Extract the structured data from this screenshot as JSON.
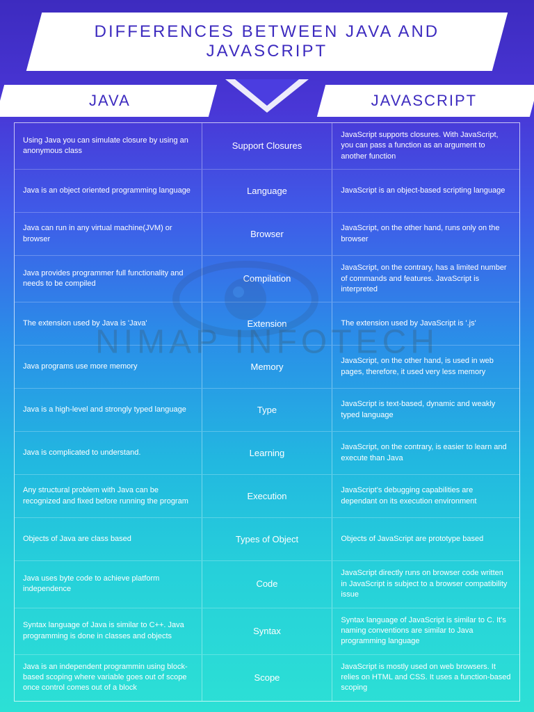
{
  "title": "DIFFERENCES BETWEEN JAVA AND JAVASCRIPT",
  "header_left": "JAVA",
  "header_right": "JAVASCRIPT",
  "watermark": "NIMAP INFOTECH",
  "rows": [
    {
      "topic": "Support Closures",
      "java": "Using Java you can simulate closure by using an anonymous class",
      "js": "JavaScript supports closures. With JavaScript, you can pass a function as an argument to another function"
    },
    {
      "topic": "Language",
      "java": "Java is an object oriented programming language",
      "js": "JavaScript is an object-based scripting language"
    },
    {
      "topic": "Browser",
      "java": "Java can run in any virtual machine(JVM) or browser",
      "js": "JavaScript, on the other hand, runs only on the browser"
    },
    {
      "topic": "Compilation",
      "java": "Java provides programmer full functionality and needs to be compiled",
      "js": "JavaScript, on the contrary, has a limited number of commands and features. JavaScript is interpreted"
    },
    {
      "topic": "Extension",
      "java": "The extension used by Java is 'Java'",
      "js": "The extension used by JavaScript is '.js'"
    },
    {
      "topic": "Memory",
      "java": "Java programs use more memory",
      "js": "JavaScript, on the other hand, is used in web pages, therefore, it used very less memory"
    },
    {
      "topic": "Type",
      "java": "Java is a high-level and strongly typed language",
      "js": "JavaScript is text-based, dynamic and weakly typed language"
    },
    {
      "topic": "Learning",
      "java": "Java is complicated to understand.",
      "js": "JavaScript, on the contrary, is easier to learn and execute than Java"
    },
    {
      "topic": "Execution",
      "java": "Any structural problem with Java can be recognized and fixed before running the program",
      "js": "JavaScript's debugging capabilities are dependant on its execution environment"
    },
    {
      "topic": "Types of Object",
      "java": "Objects of Java are class based",
      "js": "Objects of JavaScript are prototype based"
    },
    {
      "topic": "Code",
      "java": "Java uses byte code to achieve platform independence",
      "js": "JavaScript directly runs on browser code written in JavaScript is subject to a browser compatibility issue"
    },
    {
      "topic": "Syntax",
      "java": "Syntax language of Java is similar to C++. Java programming is done in classes and objects",
      "js": "Syntax language of JavaScript is similar to C. It's naming conventions are similar to Java programming language"
    },
    {
      "topic": "Scope",
      "java": "Java is an independent programmin using block-based scoping where variable goes out of scope once control comes out of a block",
      "js": "JavaScript is mostly used on web browsers. It relies on HTML and CSS. It uses a function-based scoping"
    }
  ]
}
